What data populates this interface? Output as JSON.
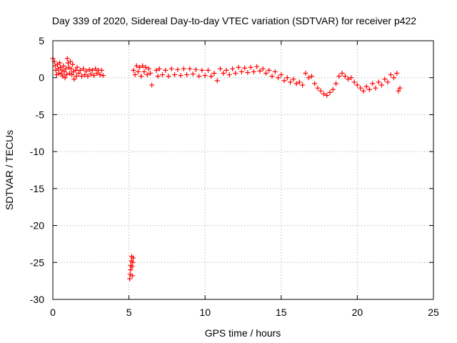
{
  "chart_data": {
    "type": "scatter",
    "title": "Day 339 of 2020, Sidereal Day-to-day VTEC variation (SDTVAR) for receiver p422",
    "xlabel": "GPS time / hours",
    "ylabel": "SDTVAR / TECUs",
    "xlim": [
      0,
      25
    ],
    "ylim": [
      -30,
      5
    ],
    "xticks": [
      0,
      5,
      10,
      15,
      20,
      25
    ],
    "yticks": [
      5,
      0,
      -5,
      -10,
      -15,
      -20,
      -25,
      -30
    ],
    "grid": true,
    "marker": "+",
    "color": "#ff0000",
    "series": [
      {
        "name": "SDTVAR",
        "points": [
          [
            0.0,
            2.6
          ],
          [
            0.1,
            2.2
          ],
          [
            0.15,
            1.6
          ],
          [
            0.2,
            1.0
          ],
          [
            0.25,
            0.4
          ],
          [
            0.3,
            1.8
          ],
          [
            0.35,
            1.2
          ],
          [
            0.4,
            0.6
          ],
          [
            0.45,
            2.0
          ],
          [
            0.5,
            1.4
          ],
          [
            0.55,
            0.5
          ],
          [
            0.6,
            1.0
          ],
          [
            0.65,
            0.2
          ],
          [
            0.7,
            1.6
          ],
          [
            0.75,
            0.8
          ],
          [
            0.8,
            0.0
          ],
          [
            0.85,
            1.2
          ],
          [
            0.9,
            0.4
          ],
          [
            0.95,
            2.6
          ],
          [
            1.0,
            2.0
          ],
          [
            1.05,
            1.4
          ],
          [
            1.1,
            0.6
          ],
          [
            1.15,
            2.2
          ],
          [
            1.2,
            1.2
          ],
          [
            1.25,
            0.4
          ],
          [
            1.3,
            1.8
          ],
          [
            1.35,
            0.8
          ],
          [
            1.4,
            -0.2
          ],
          [
            1.5,
            1.0
          ],
          [
            1.55,
            0.2
          ],
          [
            1.6,
            1.4
          ],
          [
            1.7,
            0.6
          ],
          [
            1.8,
            1.0
          ],
          [
            1.9,
            0.2
          ],
          [
            2.0,
            1.2
          ],
          [
            2.1,
            0.4
          ],
          [
            2.2,
            0.9
          ],
          [
            2.3,
            0.2
          ],
          [
            2.4,
            1.1
          ],
          [
            2.5,
            0.5
          ],
          [
            2.6,
            1.0
          ],
          [
            2.7,
            0.3
          ],
          [
            2.8,
            1.2
          ],
          [
            2.9,
            0.6
          ],
          [
            3.0,
            1.0
          ],
          [
            3.1,
            0.4
          ],
          [
            3.2,
            1.0
          ],
          [
            3.3,
            0.3
          ],
          [
            5.05,
            -27.2
          ],
          [
            5.08,
            -26.6
          ],
          [
            5.1,
            -26.0
          ],
          [
            5.12,
            -25.4
          ],
          [
            5.15,
            -24.8
          ],
          [
            5.18,
            -24.2
          ],
          [
            5.2,
            -25.6
          ],
          [
            5.22,
            -26.8
          ],
          [
            5.25,
            -25.0
          ],
          [
            5.28,
            -24.4
          ],
          [
            5.3,
            1.0
          ],
          [
            5.4,
            0.4
          ],
          [
            5.5,
            1.6
          ],
          [
            5.6,
            0.8
          ],
          [
            5.7,
            1.4
          ],
          [
            5.8,
            0.2
          ],
          [
            5.9,
            1.6
          ],
          [
            6.0,
            0.8
          ],
          [
            6.1,
            1.4
          ],
          [
            6.2,
            0.4
          ],
          [
            6.3,
            1.2
          ],
          [
            6.4,
            0.6
          ],
          [
            6.5,
            -1.0
          ],
          [
            6.8,
            1.0
          ],
          [
            6.9,
            0.2
          ],
          [
            7.0,
            1.2
          ],
          [
            7.2,
            0.4
          ],
          [
            7.4,
            1.0
          ],
          [
            7.6,
            0.2
          ],
          [
            7.8,
            1.2
          ],
          [
            8.0,
            0.4
          ],
          [
            8.2,
            1.1
          ],
          [
            8.4,
            0.3
          ],
          [
            8.6,
            1.2
          ],
          [
            8.8,
            0.4
          ],
          [
            9.0,
            1.2
          ],
          [
            9.2,
            0.5
          ],
          [
            9.4,
            1.1
          ],
          [
            9.6,
            0.2
          ],
          [
            9.8,
            1.0
          ],
          [
            10.0,
            0.3
          ],
          [
            10.2,
            1.0
          ],
          [
            10.4,
            0.2
          ],
          [
            10.6,
            0.6
          ],
          [
            10.8,
            -0.4
          ],
          [
            11.0,
            1.2
          ],
          [
            11.2,
            0.6
          ],
          [
            11.4,
            1.0
          ],
          [
            11.6,
            0.4
          ],
          [
            11.8,
            1.2
          ],
          [
            12.0,
            0.6
          ],
          [
            12.2,
            1.4
          ],
          [
            12.4,
            0.8
          ],
          [
            12.6,
            1.3
          ],
          [
            12.8,
            0.7
          ],
          [
            13.0,
            1.4
          ],
          [
            13.2,
            0.8
          ],
          [
            13.4,
            1.5
          ],
          [
            13.6,
            0.9
          ],
          [
            13.8,
            1.2
          ],
          [
            14.0,
            0.6
          ],
          [
            14.2,
            1.0
          ],
          [
            14.4,
            0.2
          ],
          [
            14.6,
            0.8
          ],
          [
            14.8,
            0.0
          ],
          [
            15.0,
            0.4
          ],
          [
            15.2,
            -0.4
          ],
          [
            15.4,
            0.0
          ],
          [
            15.6,
            -0.6
          ],
          [
            15.8,
            -0.2
          ],
          [
            16.0,
            -0.8
          ],
          [
            16.2,
            -0.6
          ],
          [
            16.4,
            -1.0
          ],
          [
            16.6,
            0.6
          ],
          [
            16.8,
            0.0
          ],
          [
            17.0,
            0.2
          ],
          [
            17.2,
            -0.8
          ],
          [
            17.4,
            -1.4
          ],
          [
            17.6,
            -1.8
          ],
          [
            17.8,
            -2.2
          ],
          [
            18.0,
            -2.4
          ],
          [
            18.2,
            -2.0
          ],
          [
            18.4,
            -1.6
          ],
          [
            18.6,
            -0.8
          ],
          [
            18.8,
            0.2
          ],
          [
            19.0,
            0.6
          ],
          [
            19.2,
            0.2
          ],
          [
            19.4,
            -0.2
          ],
          [
            19.6,
            0.0
          ],
          [
            19.8,
            -0.6
          ],
          [
            20.0,
            -1.0
          ],
          [
            20.2,
            -1.4
          ],
          [
            20.4,
            -1.8
          ],
          [
            20.6,
            -1.2
          ],
          [
            20.8,
            -1.6
          ],
          [
            21.0,
            -0.8
          ],
          [
            21.2,
            -1.4
          ],
          [
            21.4,
            -0.6
          ],
          [
            21.6,
            -1.0
          ],
          [
            21.8,
            -0.2
          ],
          [
            22.0,
            -0.6
          ],
          [
            22.2,
            0.4
          ],
          [
            22.4,
            0.0
          ],
          [
            22.6,
            0.6
          ],
          [
            22.7,
            -1.8
          ],
          [
            22.8,
            -1.4
          ]
        ]
      }
    ]
  }
}
